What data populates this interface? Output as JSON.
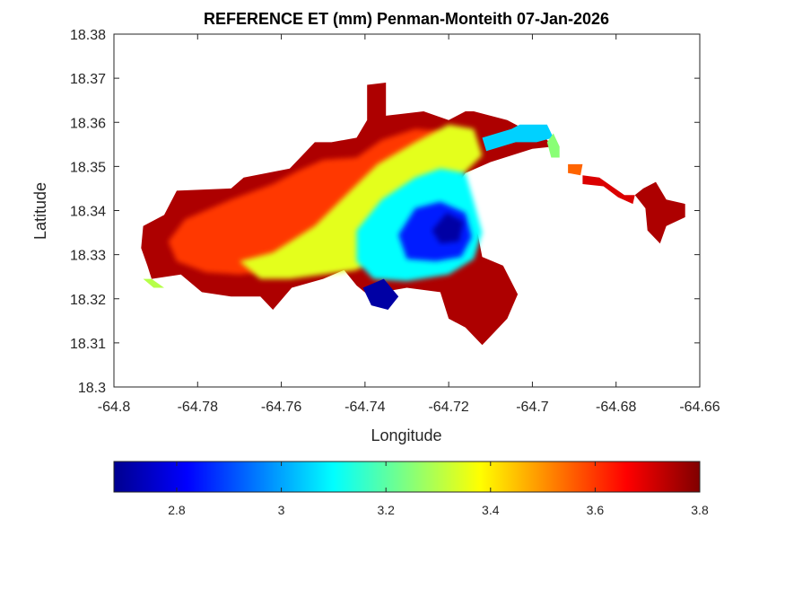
{
  "map": {
    "title": "REFERENCE ET (mm) Penman-Monteith 07-Jan-2026",
    "xlabel": "Longitude",
    "ylabel": "Latitude",
    "xlim": [
      -64.8,
      -64.66
    ],
    "ylim": [
      18.3,
      18.38
    ],
    "xticks": [
      -64.8,
      -64.78,
      -64.76,
      -64.74,
      -64.72,
      -64.7,
      -64.68,
      -64.66
    ],
    "xtick_labels": [
      "-64.8",
      "-64.78",
      "-64.76",
      "-64.74",
      "-64.72",
      "-64.7",
      "-64.68",
      "-64.66"
    ],
    "yticks": [
      18.3,
      18.31,
      18.32,
      18.33,
      18.34,
      18.35,
      18.36,
      18.37,
      18.38
    ],
    "ytick_labels": [
      "18.3",
      "18.31",
      "18.32",
      "18.33",
      "18.34",
      "18.35",
      "18.36",
      "18.37",
      "18.38"
    ],
    "regions": [
      {
        "name": "west-lobe-high",
        "value": 3.75,
        "points": [
          [
            -64.793,
            18.3365
          ],
          [
            -64.788,
            18.339
          ],
          [
            -64.785,
            18.3445
          ],
          [
            -64.772,
            18.345
          ],
          [
            -64.769,
            18.3475
          ],
          [
            -64.758,
            18.3495
          ],
          [
            -64.755,
            18.3525
          ],
          [
            -64.752,
            18.3555
          ],
          [
            -64.748,
            18.3555
          ],
          [
            -64.742,
            18.3565
          ],
          [
            -64.7395,
            18.3605
          ],
          [
            -64.7395,
            18.3685
          ],
          [
            -64.735,
            18.369
          ],
          [
            -64.735,
            18.3615
          ],
          [
            -64.726,
            18.3625
          ],
          [
            -64.72,
            18.3605
          ],
          [
            -64.716,
            18.3625
          ],
          [
            -64.714,
            18.3625
          ],
          [
            -64.706,
            18.3605
          ],
          [
            -64.702,
            18.3585
          ],
          [
            -64.7,
            18.3575
          ],
          [
            -64.699,
            18.3585
          ],
          [
            -64.697,
            18.3565
          ],
          [
            -64.695,
            18.3545
          ],
          [
            -64.7,
            18.354
          ],
          [
            -64.71,
            18.351
          ],
          [
            -64.716,
            18.3485
          ],
          [
            -64.72,
            18.343
          ],
          [
            -64.716,
            18.3395
          ],
          [
            -64.713,
            18.3345
          ],
          [
            -64.712,
            18.3295
          ],
          [
            -64.707,
            18.3275
          ],
          [
            -64.7035,
            18.321
          ],
          [
            -64.706,
            18.3155
          ],
          [
            -64.712,
            18.3095
          ],
          [
            -64.716,
            18.3135
          ],
          [
            -64.72,
            18.3155
          ],
          [
            -64.722,
            18.3215
          ],
          [
            -64.73,
            18.3225
          ],
          [
            -64.736,
            18.3215
          ],
          [
            -64.7375,
            18.3195
          ],
          [
            -64.742,
            18.323
          ],
          [
            -64.745,
            18.3265
          ],
          [
            -64.75,
            18.3245
          ],
          [
            -64.7575,
            18.3225
          ],
          [
            -64.762,
            18.3175
          ],
          [
            -64.765,
            18.3205
          ],
          [
            -64.772,
            18.3205
          ],
          [
            -64.779,
            18.3215
          ],
          [
            -64.784,
            18.3255
          ],
          [
            -64.791,
            18.3245
          ],
          [
            -64.792,
            18.3275
          ],
          [
            -64.7935,
            18.3315
          ]
        ]
      },
      {
        "name": "central-orange",
        "value": 3.6,
        "points": [
          [
            -64.787,
            18.333
          ],
          [
            -64.783,
            18.338
          ],
          [
            -64.772,
            18.3425
          ],
          [
            -64.762,
            18.346
          ],
          [
            -64.756,
            18.349
          ],
          [
            -64.75,
            18.3515
          ],
          [
            -64.742,
            18.352
          ],
          [
            -64.736,
            18.356
          ],
          [
            -64.728,
            18.3585
          ],
          [
            -64.722,
            18.358
          ],
          [
            -64.72,
            18.353
          ],
          [
            -64.728,
            18.3475
          ],
          [
            -64.736,
            18.3425
          ],
          [
            -64.742,
            18.3355
          ],
          [
            -64.75,
            18.3315
          ],
          [
            -64.756,
            18.3295
          ],
          [
            -64.762,
            18.3265
          ],
          [
            -64.77,
            18.3255
          ],
          [
            -64.778,
            18.326
          ],
          [
            -64.785,
            18.3285
          ]
        ]
      },
      {
        "name": "central-yellow-green",
        "value": 3.35,
        "points": [
          [
            -64.77,
            18.3285
          ],
          [
            -64.762,
            18.3305
          ],
          [
            -64.752,
            18.3365
          ],
          [
            -64.744,
            18.344
          ],
          [
            -64.737,
            18.3505
          ],
          [
            -64.728,
            18.3555
          ],
          [
            -64.72,
            18.3595
          ],
          [
            -64.714,
            18.3585
          ],
          [
            -64.712,
            18.3525
          ],
          [
            -64.72,
            18.345
          ],
          [
            -64.727,
            18.338
          ],
          [
            -64.735,
            18.331
          ],
          [
            -64.742,
            18.3265
          ],
          [
            -64.75,
            18.3255
          ],
          [
            -64.758,
            18.3245
          ],
          [
            -64.765,
            18.3245
          ]
        ]
      },
      {
        "name": "central-cyan",
        "value": 3.1,
        "points": [
          [
            -64.742,
            18.3355
          ],
          [
            -64.736,
            18.3425
          ],
          [
            -64.728,
            18.3475
          ],
          [
            -64.722,
            18.3495
          ],
          [
            -64.716,
            18.3485
          ],
          [
            -64.714,
            18.342
          ],
          [
            -64.712,
            18.335
          ],
          [
            -64.714,
            18.329
          ],
          [
            -64.72,
            18.3255
          ],
          [
            -64.73,
            18.324
          ],
          [
            -64.738,
            18.3245
          ],
          [
            -64.742,
            18.3285
          ]
        ]
      },
      {
        "name": "central-blue",
        "value": 2.85,
        "points": [
          [
            -64.732,
            18.3345
          ],
          [
            -64.728,
            18.3405
          ],
          [
            -64.722,
            18.342
          ],
          [
            -64.716,
            18.3395
          ],
          [
            -64.7145,
            18.334
          ],
          [
            -64.717,
            18.3295
          ],
          [
            -64.723,
            18.3285
          ],
          [
            -64.73,
            18.329
          ]
        ]
      },
      {
        "name": "central-darkblue",
        "value": 2.72,
        "points": [
          [
            -64.724,
            18.3355
          ],
          [
            -64.7205,
            18.3395
          ],
          [
            -64.7165,
            18.3375
          ],
          [
            -64.7175,
            18.333
          ],
          [
            -64.722,
            18.3325
          ]
        ]
      },
      {
        "name": "south-darkblue",
        "value": 2.72,
        "points": [
          [
            -64.7405,
            18.3225
          ],
          [
            -64.7355,
            18.3245
          ],
          [
            -64.732,
            18.3205
          ],
          [
            -64.7345,
            18.3175
          ],
          [
            -64.7385,
            18.3185
          ]
        ]
      },
      {
        "name": "east-cyan-strip",
        "value": 3.05,
        "points": [
          [
            -64.712,
            18.3565
          ],
          [
            -64.705,
            18.3585
          ],
          [
            -64.703,
            18.3595
          ],
          [
            -64.6965,
            18.3595
          ],
          [
            -64.695,
            18.3565
          ],
          [
            -64.699,
            18.3555
          ],
          [
            -64.704,
            18.3555
          ],
          [
            -64.711,
            18.3535
          ]
        ]
      },
      {
        "name": "east-green-arm",
        "value": 3.25,
        "points": [
          [
            -64.695,
            18.3575
          ],
          [
            -64.6935,
            18.3545
          ],
          [
            -64.6935,
            18.352
          ],
          [
            -64.6955,
            18.352
          ],
          [
            -64.6965,
            18.3555
          ]
        ]
      },
      {
        "name": "east-orange-speck",
        "value": 3.55,
        "points": [
          [
            -64.6915,
            18.3505
          ],
          [
            -64.688,
            18.3505
          ],
          [
            -64.6885,
            18.348
          ],
          [
            -64.6915,
            18.3485
          ]
        ]
      },
      {
        "name": "east-island-high",
        "value": 3.75,
        "points": [
          [
            -64.6735,
            18.345
          ],
          [
            -64.6705,
            18.3465
          ],
          [
            -64.668,
            18.3425
          ],
          [
            -64.6635,
            18.3415
          ],
          [
            -64.6635,
            18.3385
          ],
          [
            -64.668,
            18.3365
          ],
          [
            -64.6695,
            18.3325
          ],
          [
            -64.6725,
            18.3355
          ],
          [
            -64.673,
            18.3405
          ],
          [
            -64.6755,
            18.3435
          ]
        ]
      },
      {
        "name": "east-causeway",
        "value": 3.7,
        "points": [
          [
            -64.688,
            18.348
          ],
          [
            -64.684,
            18.3475
          ],
          [
            -64.681,
            18.3455
          ],
          [
            -64.678,
            18.3435
          ],
          [
            -64.6755,
            18.3435
          ],
          [
            -64.676,
            18.3415
          ],
          [
            -64.6795,
            18.343
          ],
          [
            -64.683,
            18.3455
          ],
          [
            -64.688,
            18.346
          ]
        ]
      },
      {
        "name": "west-green-tail",
        "value": 3.3,
        "points": [
          [
            -64.793,
            18.3245
          ],
          [
            -64.791,
            18.3245
          ],
          [
            -64.788,
            18.3225
          ],
          [
            -64.7905,
            18.3225
          ]
        ]
      }
    ]
  },
  "colorbar": {
    "min": 2.68,
    "max": 3.8,
    "ticks": [
      2.8,
      3.0,
      3.2,
      3.4,
      3.6,
      3.8
    ],
    "tick_labels": [
      "2.8",
      "3",
      "3.2",
      "3.4",
      "3.6",
      "3.8"
    ],
    "colormap": "jet"
  }
}
